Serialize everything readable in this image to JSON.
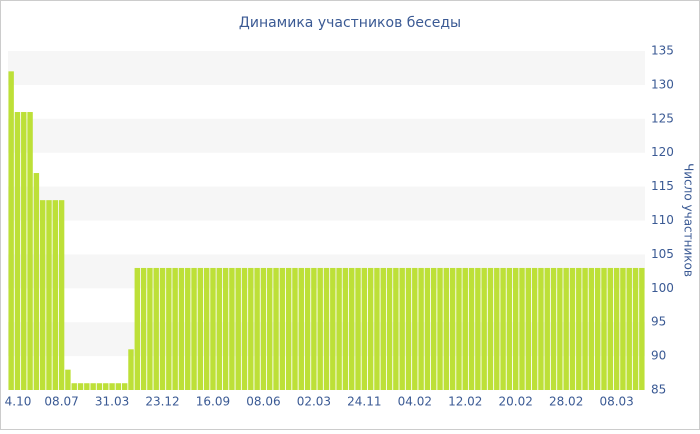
{
  "chart_data": {
    "type": "bar",
    "title": "Динамика участников беседы",
    "y_axis_label": "Число участников",
    "categories": [
      "4.10",
      null,
      null,
      null,
      null,
      null,
      null,
      null,
      "08.07",
      null,
      null,
      null,
      null,
      null,
      null,
      null,
      "31.03",
      null,
      null,
      null,
      null,
      null,
      null,
      null,
      "23.12",
      null,
      null,
      null,
      null,
      null,
      null,
      null,
      "16.09",
      null,
      null,
      null,
      null,
      null,
      null,
      null,
      "08.06",
      null,
      null,
      null,
      null,
      null,
      null,
      null,
      "02.03",
      null,
      null,
      null,
      null,
      null,
      null,
      null,
      "24.11",
      null,
      null,
      null,
      null,
      null,
      null,
      null,
      "04.02",
      null,
      null,
      null,
      null,
      null,
      null,
      null,
      "12.02",
      null,
      null,
      null,
      null,
      null,
      null,
      null,
      "20.02",
      null,
      null,
      null,
      null,
      null,
      null,
      null,
      "28.02",
      null,
      null,
      null,
      null,
      null,
      null,
      null,
      "08.03",
      null,
      null,
      null,
      null
    ],
    "values": [
      132,
      126,
      126,
      126,
      117,
      113,
      113,
      113,
      113,
      88,
      86,
      86,
      86,
      86,
      86,
      86,
      86,
      86,
      86,
      91,
      103,
      103,
      103,
      103,
      103,
      103,
      103,
      103,
      103,
      103,
      103,
      103,
      103,
      103,
      103,
      103,
      103,
      103,
      103,
      103,
      103,
      103,
      103,
      103,
      103,
      103,
      103,
      103,
      103,
      103,
      103,
      103,
      103,
      103,
      103,
      103,
      103,
      103,
      103,
      103,
      103,
      103,
      103,
      103,
      103,
      103,
      103,
      103,
      103,
      103,
      103,
      103,
      103,
      103,
      103,
      103,
      103,
      103,
      103,
      103,
      103,
      103,
      103,
      103,
      103,
      103,
      103,
      103,
      103,
      103,
      103,
      103,
      103,
      103,
      103,
      103,
      103,
      103,
      103,
      103,
      103
    ],
    "color": "#bde038",
    "ylim": [
      85,
      135
    ],
    "yticks": [
      85,
      90,
      95,
      100,
      105,
      110,
      115,
      120,
      125,
      130,
      135
    ],
    "y_axis_side": "right",
    "grid": "bands"
  }
}
